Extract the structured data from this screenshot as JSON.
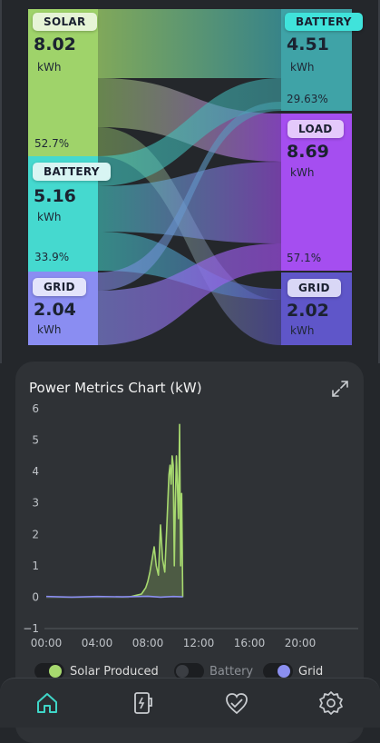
{
  "energy_flow": {
    "sources": [
      {
        "label": "SOLAR",
        "value": "8.02",
        "unit": "kWh",
        "percent": "52.7%"
      },
      {
        "label": "BATTERY",
        "value": "5.16",
        "unit": "kWh",
        "percent": "33.9%"
      },
      {
        "label": "GRID",
        "value": "2.04",
        "unit": "kWh",
        "percent": ""
      }
    ],
    "destinations": [
      {
        "label": "BATTERY",
        "value": "4.51",
        "unit": "kWh",
        "percent": "29.63%"
      },
      {
        "label": "LOAD",
        "value": "8.69",
        "unit": "kWh",
        "percent": "57.1%"
      },
      {
        "label": "GRID",
        "value": "2.02",
        "unit": "kWh",
        "percent": ""
      }
    ],
    "colors": {
      "solar": "#9fd36a",
      "battery": "#45d9cf",
      "grid": "#8a8df2",
      "battery_dest": "#3fa3a7",
      "load": "#a54ef0",
      "grid_dest": "#5f56c9"
    }
  },
  "chart": {
    "title": "Power Metrics Chart (kW)",
    "expand_icon": "expand-icon"
  },
  "chart_data": {
    "type": "line",
    "title": "Power Metrics Chart (kW)",
    "xlabel": "",
    "ylabel": "",
    "x_ticks": [
      "00:00",
      "04:00",
      "08:00",
      "12:00",
      "16:00",
      "20:00"
    ],
    "y_ticks": [
      "6",
      "5",
      "4",
      "3",
      "2",
      "1",
      "0",
      "−1"
    ],
    "xlim": [
      "00:00",
      "24:00"
    ],
    "ylim": [
      -1,
      6
    ],
    "grid": false,
    "legend_position": "bottom",
    "series": [
      {
        "name": "Solar Produced",
        "color": "#a7d96f",
        "area": true,
        "x": [
          "00:00",
          "06:30",
          "07:00",
          "07:30",
          "07:50",
          "08:00",
          "08:10",
          "08:20",
          "08:30",
          "08:40",
          "08:50",
          "09:00",
          "09:10",
          "09:20",
          "09:30",
          "09:40",
          "09:45",
          "09:50",
          "09:55",
          "10:00",
          "10:05",
          "10:10",
          "10:15",
          "10:20",
          "10:25",
          "10:30",
          "10:35",
          "10:40",
          "10:45"
        ],
        "y": [
          0,
          0,
          0.05,
          0.1,
          0.3,
          0.5,
          0.8,
          1.2,
          1.6,
          1.0,
          0.7,
          2.3,
          1.2,
          0.8,
          2.3,
          3.9,
          4.2,
          3.6,
          4.5,
          4.2,
          1.0,
          3.0,
          4.5,
          3.5,
          2.5,
          5.5,
          1.0,
          3.3,
          0
        ]
      },
      {
        "name": "Battery",
        "color": "#3b3e43",
        "x": [
          "00:00",
          "10:45"
        ],
        "y": [
          0,
          0
        ]
      },
      {
        "name": "Grid",
        "color": "#8b8ff0",
        "x": [
          "00:00",
          "02:00",
          "04:00",
          "06:00",
          "08:00",
          "09:00",
          "10:00",
          "10:45"
        ],
        "y": [
          0.02,
          0.0,
          0.02,
          0.01,
          0.03,
          0.0,
          0.02,
          0.01
        ]
      }
    ]
  },
  "legend": [
    {
      "label": "Solar Produced",
      "color": "#a7d96f"
    },
    {
      "label": "Battery",
      "color": "#3b3e43"
    },
    {
      "label": "Grid",
      "color": "#8b8ff0"
    }
  ],
  "nav": [
    {
      "name": "home-icon",
      "active": true
    },
    {
      "name": "device-icon",
      "active": false
    },
    {
      "name": "health-icon",
      "active": false
    },
    {
      "name": "settings-icon",
      "active": false
    }
  ]
}
